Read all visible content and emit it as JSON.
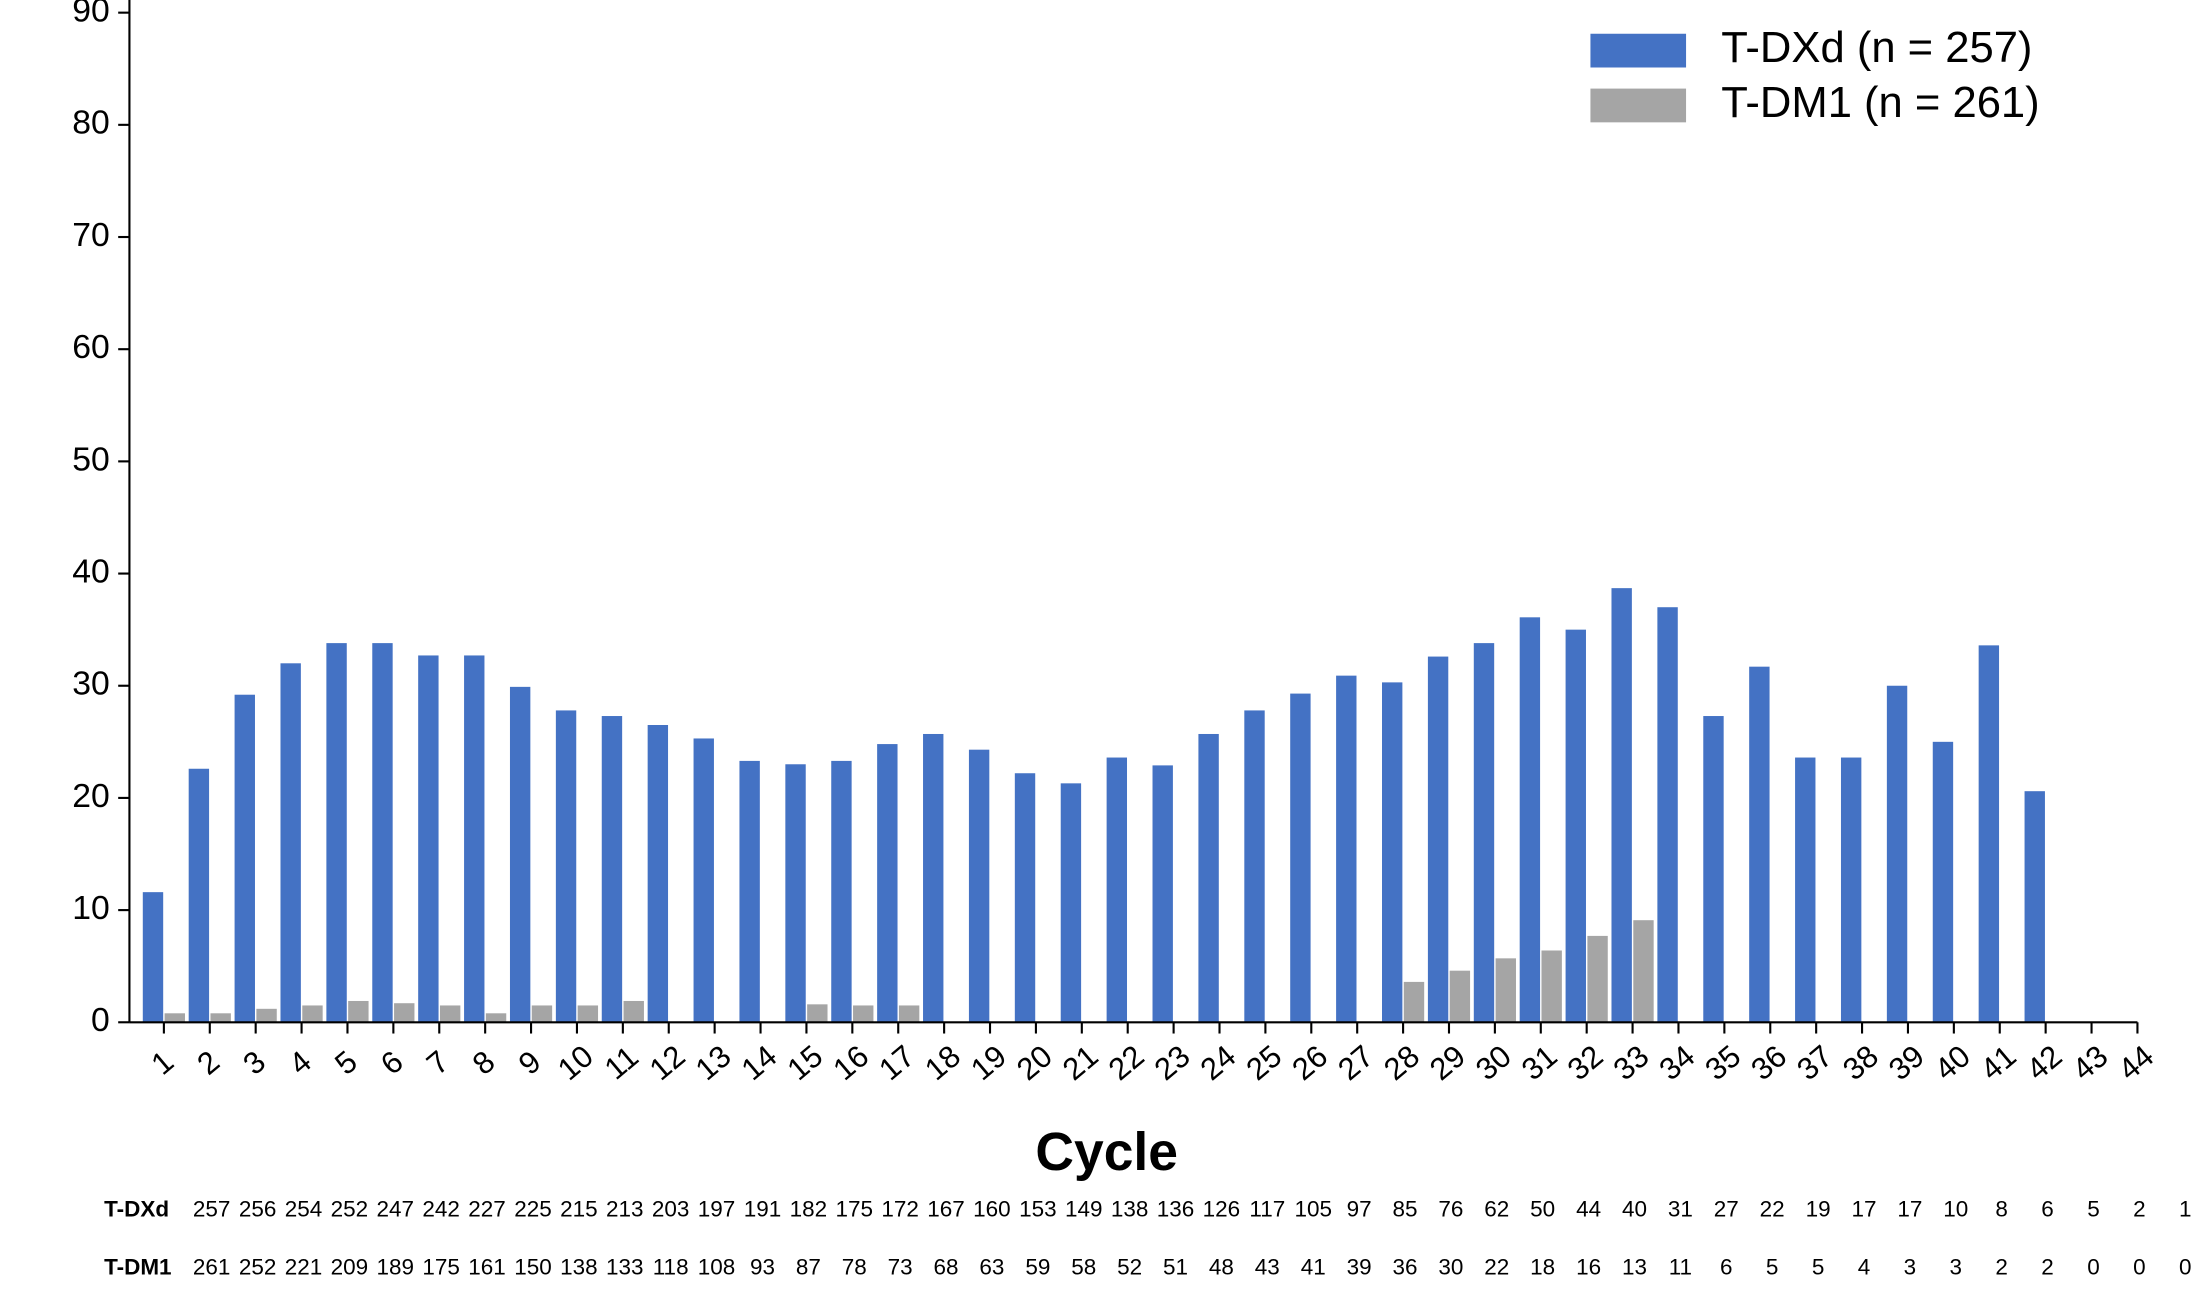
{
  "chart_data": {
    "type": "bar",
    "categories": [
      "1",
      "2",
      "3",
      "4",
      "5",
      "6",
      "7",
      "8",
      "9",
      "10",
      "11",
      "12",
      "13",
      "14",
      "15",
      "16",
      "17",
      "18",
      "19",
      "20",
      "21",
      "22",
      "23",
      "24",
      "25",
      "26",
      "27",
      "28",
      "29",
      "30",
      "31",
      "32",
      "33",
      "34",
      "35",
      "36",
      "37",
      "38",
      "39",
      "40",
      "41",
      "42",
      "43",
      "44"
    ],
    "series": [
      {
        "name": "T-DXd (n = 257)",
        "color": "#4472c4",
        "values": [
          11.6,
          22.6,
          29.2,
          32.0,
          33.8,
          33.8,
          32.7,
          32.7,
          29.9,
          27.8,
          27.3,
          26.5,
          25.3,
          23.3,
          23.0,
          23.3,
          24.8,
          25.7,
          24.3,
          22.2,
          21.3,
          23.6,
          22.9,
          25.7,
          27.8,
          29.3,
          30.9,
          30.3,
          32.6,
          33.8,
          36.1,
          35.0,
          38.7,
          37.0,
          27.3,
          31.7,
          23.6,
          23.6,
          30.0,
          25.0,
          33.6,
          20.6,
          0,
          0
        ]
      },
      {
        "name": "T-DM1 (n = 261)",
        "color": "#a5a5a5",
        "values": [
          0.8,
          0.8,
          1.2,
          1.5,
          1.9,
          1.7,
          1.5,
          0.8,
          1.5,
          1.5,
          1.9,
          0,
          0,
          0,
          1.6,
          1.5,
          1.5,
          0,
          0,
          0,
          0,
          0,
          0,
          0,
          0,
          0,
          0,
          3.6,
          4.6,
          5.7,
          6.4,
          7.7,
          9.1,
          0,
          0,
          0,
          0,
          0,
          0,
          0,
          0,
          0,
          0,
          0
        ]
      }
    ],
    "xlabel": "Cycle",
    "ylim": [
      0,
      90
    ],
    "yticks": [
      0,
      10,
      20,
      30,
      40,
      50,
      60,
      70,
      80,
      90
    ],
    "legend": "upper right",
    "risk_table": [
      {
        "label": "T-DXd",
        "values": [
          257,
          256,
          254,
          252,
          247,
          242,
          227,
          225,
          215,
          213,
          203,
          197,
          191,
          182,
          175,
          172,
          167,
          160,
          153,
          149,
          138,
          136,
          126,
          117,
          105,
          97,
          85,
          76,
          62,
          50,
          44,
          40,
          31,
          27,
          22,
          19,
          17,
          17,
          10,
          8,
          6,
          5,
          2,
          1
        ]
      },
      {
        "label": "T-DM1",
        "values": [
          261,
          252,
          221,
          209,
          189,
          175,
          161,
          150,
          138,
          133,
          118,
          108,
          93,
          87,
          78,
          73,
          68,
          63,
          59,
          58,
          52,
          51,
          48,
          43,
          41,
          39,
          36,
          30,
          22,
          18,
          16,
          13,
          11,
          6,
          5,
          5,
          4,
          3,
          3,
          2,
          2,
          0,
          0,
          0
        ]
      }
    ]
  }
}
